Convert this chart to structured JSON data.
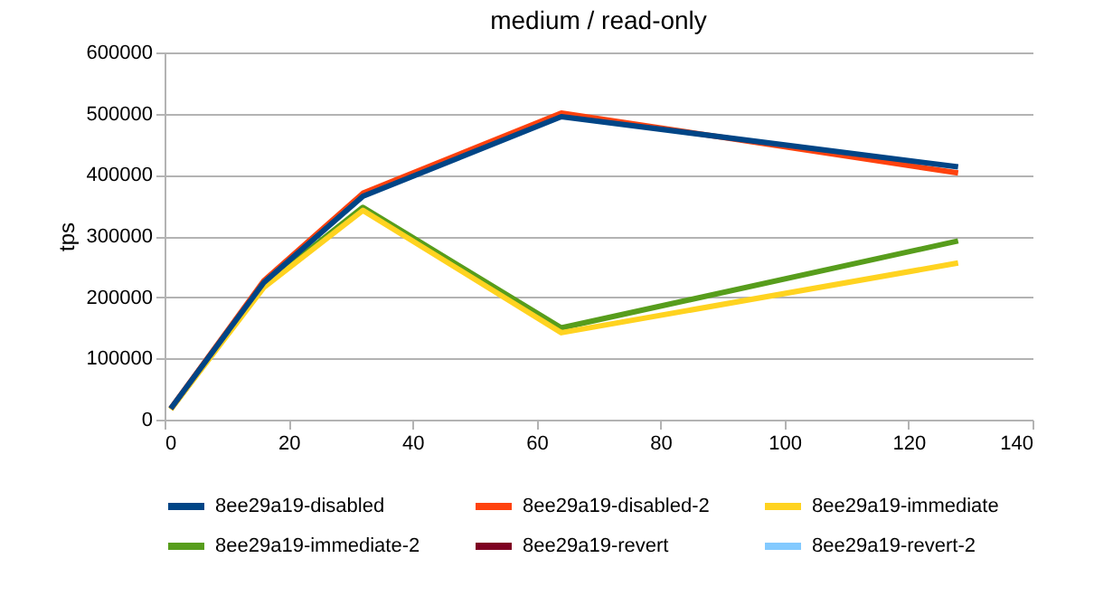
{
  "chart_data": {
    "type": "line",
    "title": "medium / read-only",
    "ylabel": "tps",
    "x": [
      1,
      16,
      32,
      64,
      128
    ],
    "xlim": [
      0,
      140
    ],
    "xticks": [
      0,
      20,
      40,
      60,
      80,
      100,
      120,
      140
    ],
    "ylim": [
      0,
      600000
    ],
    "yticks": [
      0,
      100000,
      200000,
      300000,
      400000,
      500000,
      600000
    ],
    "grid": "y",
    "legend": "bottom",
    "marker": "none",
    "line_style": "solid",
    "series": [
      {
        "name": "8ee29a19-disabled",
        "color": "#004586",
        "values": [
          18000,
          224000,
          365000,
          495000,
          413000
        ]
      },
      {
        "name": "8ee29a19-disabled-2",
        "color": "#ff420e",
        "values": [
          18000,
          227000,
          370000,
          501000,
          403000
        ]
      },
      {
        "name": "8ee29a19-immediate",
        "color": "#ffd320",
        "values": [
          17000,
          216000,
          342000,
          142000,
          256000
        ]
      },
      {
        "name": "8ee29a19-immediate-2",
        "color": "#579d1c",
        "values": [
          17000,
          219000,
          347000,
          150000,
          292000
        ]
      },
      {
        "name": "8ee29a19-revert",
        "color": "#7e0021",
        "values": [
          null,
          null,
          null,
          null,
          null
        ]
      },
      {
        "name": "8ee29a19-revert-2",
        "color": "#83caff",
        "values": [
          null,
          null,
          null,
          null,
          null
        ]
      }
    ]
  }
}
